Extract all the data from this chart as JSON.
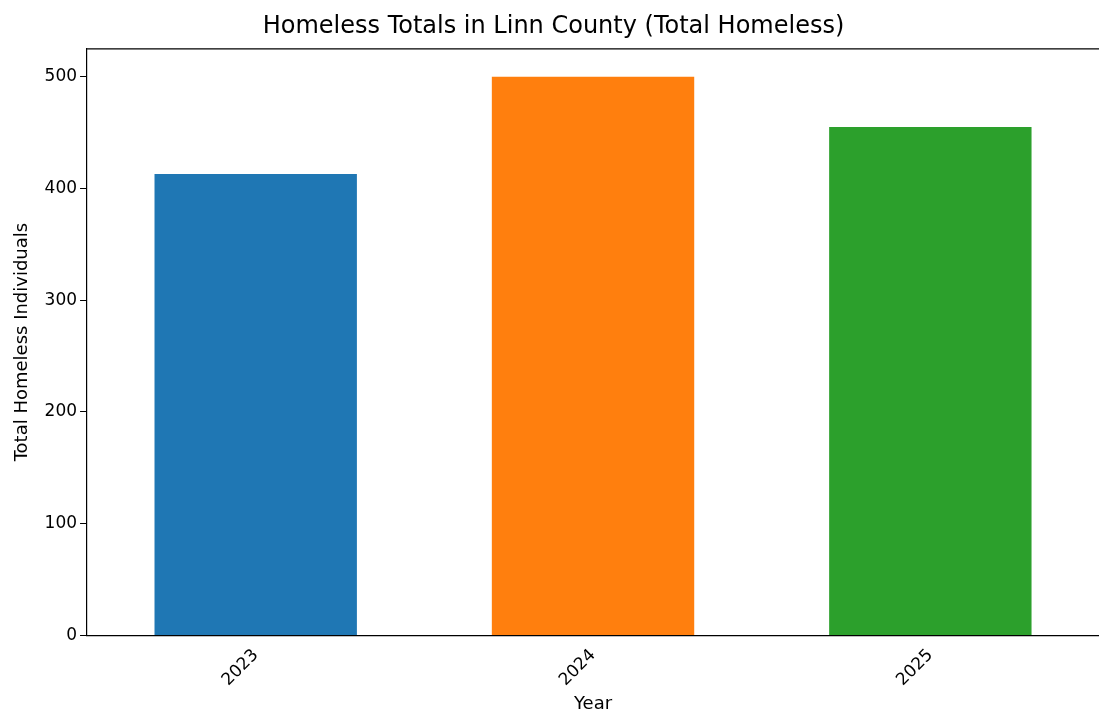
{
  "chart_data": {
    "type": "bar",
    "title": "Homeless Totals in Linn County (Total Homeless)",
    "xlabel": "Year",
    "ylabel": "Total Homeless Individuals",
    "categories": [
      "2023",
      "2024",
      "2025"
    ],
    "values": [
      413,
      500,
      455
    ],
    "colors": [
      "#1f77b4",
      "#ff7f0e",
      "#2ca02c"
    ],
    "ylim": [
      0,
      525
    ],
    "yticks": [
      0,
      100,
      200,
      300,
      400,
      500
    ],
    "grid": false,
    "legend": false
  }
}
